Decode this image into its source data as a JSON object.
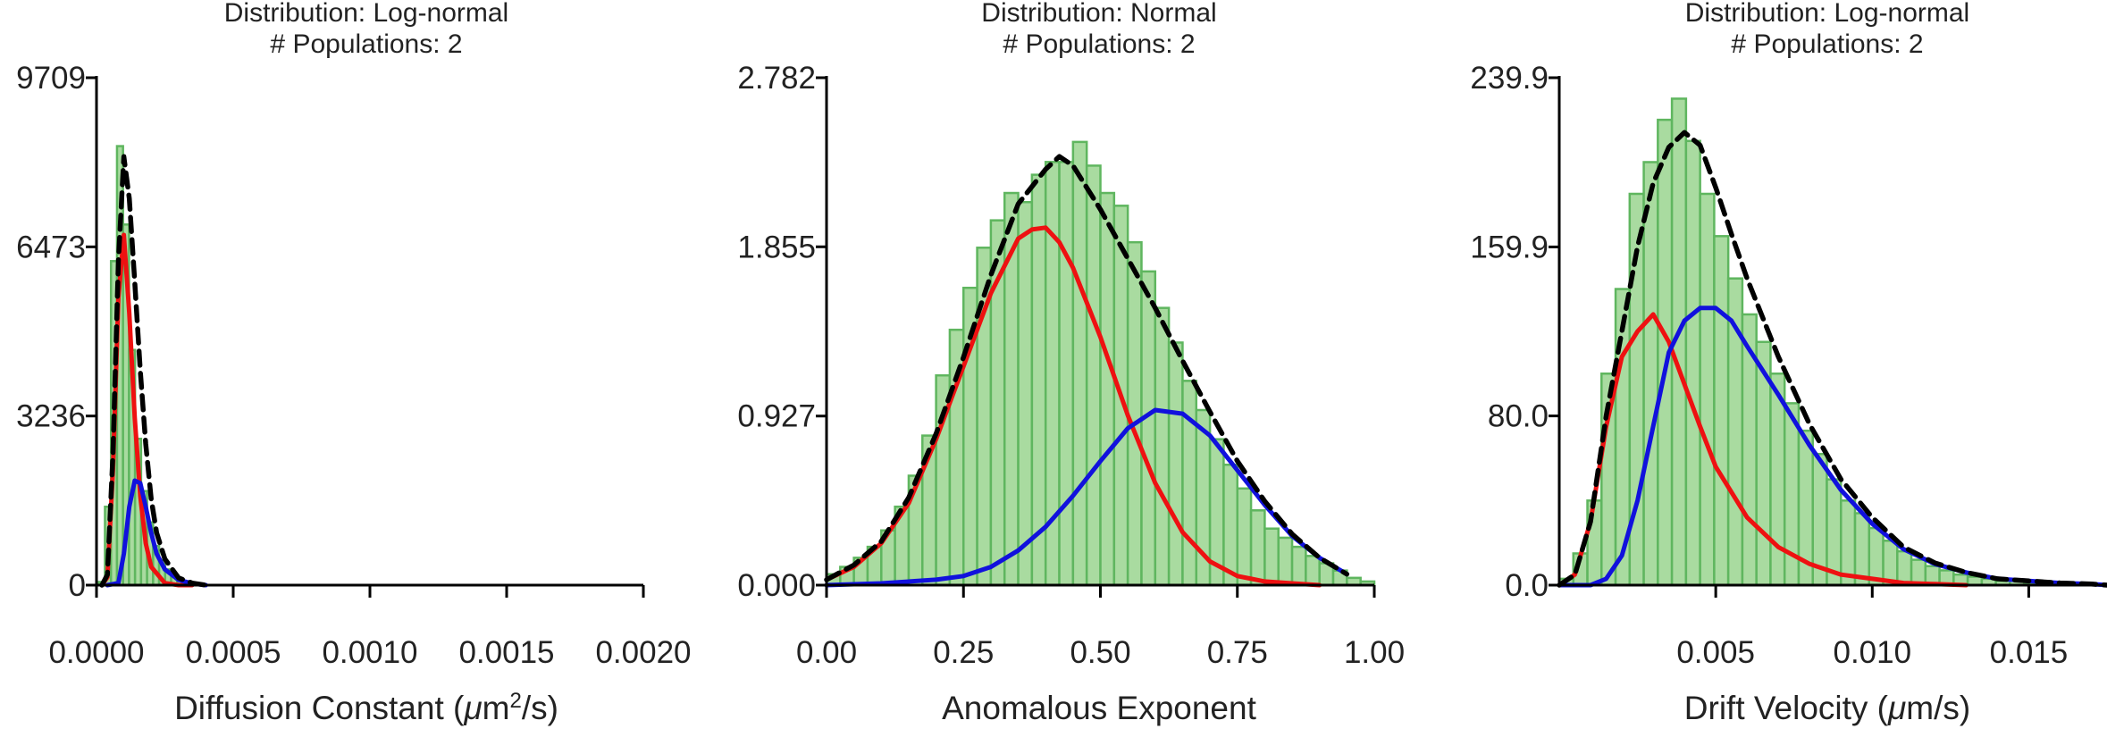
{
  "colors": {
    "bar_fill": "#a9dba0",
    "bar_edge": "#5fb65f",
    "population_1": "#ee1111",
    "population_2": "#1111dd",
    "total_fit": "#000000",
    "axis": "#000000"
  },
  "chart_data": [
    {
      "type": "bar",
      "title_lines": [
        "Distribution: Log-normal",
        "# Populations: 2"
      ],
      "xlabel_prefix": "Diffusion Constant (",
      "xlabel_greek": "μ",
      "xlabel_unit": "m",
      "xlabel_sup": "2",
      "xlabel_suffix": "/s)",
      "ylabel": "",
      "xlim": [
        0.0,
        0.002
      ],
      "ylim": [
        0,
        9709
      ],
      "xticks": [
        0.0,
        0.0005,
        0.001,
        0.0015,
        0.002
      ],
      "xtick_labels": [
        "0.0000",
        "0.0005",
        "0.0010",
        "0.0015",
        "0.0020"
      ],
      "yticks": [
        0,
        3236,
        6473,
        9709
      ],
      "ytick_labels": [
        "0",
        "3236",
        "6473",
        "9709"
      ],
      "bin_width": 2.2e-05,
      "bins": {
        "x": [
          2e-05,
          4.2e-05,
          6.4e-05,
          8.6e-05,
          0.000108,
          0.00013,
          0.000152,
          0.000174,
          0.000196,
          0.000218,
          0.00024,
          0.000262,
          0.000284,
          0.000306,
          0.000328,
          0.00035
        ],
        "values": [
          60,
          1500,
          6200,
          8400,
          6900,
          4500,
          2800,
          1800,
          1200,
          750,
          480,
          300,
          180,
          100,
          50,
          20
        ]
      },
      "series": [
        {
          "name": "",
          "role": "population_1",
          "x": [
            2e-05,
            4e-05,
            6e-05,
            8e-05,
            0.0001,
            0.00012,
            0.00014,
            0.00016,
            0.00018,
            0.0002,
            0.00025,
            0.0003,
            0.00035
          ],
          "values": [
            0,
            150,
            2200,
            5500,
            6700,
            5200,
            3200,
            1700,
            800,
            350,
            40,
            0,
            0
          ]
        },
        {
          "name": "",
          "role": "population_2",
          "x": [
            4e-05,
            8e-05,
            0.0001,
            0.00012,
            0.00014,
            0.00016,
            0.00018,
            0.0002,
            0.00022,
            0.00025,
            0.0003,
            0.00035,
            0.0004
          ],
          "values": [
            0,
            40,
            600,
            1500,
            2000,
            1950,
            1500,
            1000,
            600,
            300,
            100,
            30,
            0
          ]
        },
        {
          "name": "",
          "role": "total",
          "x": [
            2e-05,
            4e-05,
            6e-05,
            8e-05,
            0.0001,
            0.00012,
            0.00014,
            0.00016,
            0.00018,
            0.0002,
            0.00022,
            0.00025,
            0.0003,
            0.00035,
            0.0004
          ],
          "values": [
            0,
            200,
            2500,
            6200,
            8200,
            7400,
            5800,
            4100,
            2700,
            1650,
            1000,
            500,
            140,
            40,
            0
          ]
        }
      ]
    },
    {
      "type": "bar",
      "title_lines": [
        "Distribution: Normal",
        "# Populations: 2"
      ],
      "xlabel_prefix": "Anomalous Exponent",
      "xlabel_greek": "",
      "xlabel_unit": "",
      "xlabel_sup": "",
      "xlabel_suffix": "",
      "ylabel": "",
      "xlim": [
        0.0,
        1.0
      ],
      "ylim": [
        0,
        2.782
      ],
      "xticks": [
        0.0,
        0.25,
        0.5,
        0.75,
        1.0
      ],
      "xtick_labels": [
        "0.00",
        "0.25",
        "0.50",
        "0.75",
        "1.00"
      ],
      "yticks": [
        0,
        0.927,
        1.855,
        2.782
      ],
      "ytick_labels": [
        "0.000",
        "0.927",
        "1.855",
        "2.782"
      ],
      "bin_width": 0.025,
      "bins": {
        "x": [
          0.0125,
          0.0375,
          0.0625,
          0.0875,
          0.1125,
          0.1375,
          0.1625,
          0.1875,
          0.2125,
          0.2375,
          0.2625,
          0.2875,
          0.3125,
          0.3375,
          0.3625,
          0.3875,
          0.4125,
          0.4375,
          0.4625,
          0.4875,
          0.5125,
          0.5375,
          0.5625,
          0.5875,
          0.6125,
          0.6375,
          0.6625,
          0.6875,
          0.7125,
          0.7375,
          0.7625,
          0.7875,
          0.8125,
          0.8375,
          0.8625,
          0.8875,
          0.9125,
          0.9375,
          0.9625,
          0.9875
        ],
        "values": [
          0.06,
          0.1,
          0.15,
          0.21,
          0.3,
          0.43,
          0.6,
          0.82,
          1.15,
          1.4,
          1.63,
          1.85,
          2.0,
          2.15,
          2.1,
          2.25,
          2.32,
          2.32,
          2.43,
          2.3,
          2.15,
          2.08,
          1.88,
          1.72,
          1.52,
          1.33,
          1.12,
          0.96,
          0.8,
          0.66,
          0.53,
          0.41,
          0.31,
          0.26,
          0.21,
          0.16,
          0.12,
          0.08,
          0.04,
          0.02
        ]
      },
      "series": [
        {
          "name": "",
          "role": "population_1",
          "x": [
            0.0,
            0.05,
            0.1,
            0.15,
            0.2,
            0.25,
            0.3,
            0.35,
            0.375,
            0.4,
            0.425,
            0.45,
            0.5,
            0.55,
            0.6,
            0.65,
            0.7,
            0.75,
            0.8,
            0.85,
            0.9
          ],
          "values": [
            0.03,
            0.1,
            0.23,
            0.45,
            0.8,
            1.2,
            1.6,
            1.9,
            1.95,
            1.96,
            1.88,
            1.74,
            1.36,
            0.93,
            0.56,
            0.29,
            0.13,
            0.05,
            0.02,
            0.01,
            0.0
          ]
        },
        {
          "name": "",
          "role": "population_2",
          "x": [
            0.0,
            0.1,
            0.2,
            0.25,
            0.3,
            0.35,
            0.4,
            0.45,
            0.5,
            0.55,
            0.6,
            0.65,
            0.7,
            0.75,
            0.8,
            0.85,
            0.9,
            0.95
          ],
          "values": [
            0.0,
            0.01,
            0.03,
            0.05,
            0.1,
            0.19,
            0.32,
            0.49,
            0.68,
            0.86,
            0.96,
            0.94,
            0.82,
            0.63,
            0.44,
            0.27,
            0.15,
            0.06
          ]
        },
        {
          "name": "",
          "role": "total",
          "x": [
            0.0,
            0.05,
            0.1,
            0.15,
            0.2,
            0.25,
            0.3,
            0.35,
            0.4,
            0.425,
            0.45,
            0.5,
            0.55,
            0.6,
            0.65,
            0.7,
            0.75,
            0.8,
            0.85,
            0.9,
            0.95
          ],
          "values": [
            0.03,
            0.11,
            0.24,
            0.48,
            0.83,
            1.25,
            1.7,
            2.09,
            2.28,
            2.35,
            2.3,
            2.06,
            1.79,
            1.52,
            1.23,
            0.95,
            0.68,
            0.46,
            0.28,
            0.15,
            0.06
          ]
        }
      ]
    },
    {
      "type": "bar",
      "title_lines": [
        "Distribution: Log-normal",
        "# Populations: 2"
      ],
      "xlabel_prefix": "Drift Velocity (",
      "xlabel_greek": "μ",
      "xlabel_unit": "m/s)",
      "xlabel_sup": "",
      "xlabel_suffix": "",
      "ylabel": "",
      "xlim": [
        0.0,
        0.0175
      ],
      "ylim": [
        0,
        239.9
      ],
      "xticks": [
        0.005,
        0.01,
        0.015
      ],
      "xtick_labels": [
        "0.005",
        "0.010",
        "0.015"
      ],
      "yticks": [
        0,
        80.0,
        159.9,
        239.9
      ],
      "ytick_labels": [
        "0.0",
        "80.0",
        "159.9",
        "239.9"
      ],
      "bin_width": 0.00045,
      "bins": {
        "x": [
          0.000225,
          0.000675,
          0.001125,
          0.001575,
          0.002025,
          0.002475,
          0.002925,
          0.003375,
          0.003825,
          0.004275,
          0.004725,
          0.005175,
          0.005625,
          0.006075,
          0.006525,
          0.006975,
          0.007425,
          0.007875,
          0.008325,
          0.008775,
          0.009225,
          0.009675,
          0.010125,
          0.010575,
          0.011025,
          0.011475,
          0.011925,
          0.012375,
          0.012825,
          0.013275,
          0.013725,
          0.014175,
          0.014625,
          0.015075,
          0.015525,
          0.015975,
          0.016425,
          0.016875,
          0.017325
        ],
        "values": [
          3,
          15,
          40,
          100,
          140,
          185,
          200,
          220,
          230,
          210,
          185,
          165,
          145,
          128,
          115,
          100,
          86,
          73,
          62,
          50,
          40,
          34,
          27,
          21,
          16,
          12,
          9,
          7,
          5,
          4,
          3,
          2,
          2,
          1,
          1,
          1,
          1,
          0,
          0
        ]
      },
      "series": [
        {
          "name": "",
          "role": "population_1",
          "x": [
            0.0,
            0.0005,
            0.001,
            0.0015,
            0.002,
            0.0025,
            0.003,
            0.0035,
            0.004,
            0.0045,
            0.005,
            0.006,
            0.007,
            0.008,
            0.009,
            0.01,
            0.011,
            0.012,
            0.013
          ],
          "values": [
            0,
            5,
            30,
            75,
            108,
            120,
            128,
            115,
            95,
            75,
            56,
            32,
            18,
            10,
            5,
            3,
            1,
            0.5,
            0
          ]
        },
        {
          "name": "",
          "role": "population_2",
          "x": [
            0.0,
            0.001,
            0.0015,
            0.002,
            0.0025,
            0.003,
            0.0035,
            0.004,
            0.0045,
            0.005,
            0.0055,
            0.006,
            0.007,
            0.008,
            0.009,
            0.01,
            0.011,
            0.012,
            0.013,
            0.014,
            0.015,
            0.016,
            0.017,
            0.0175
          ],
          "values": [
            0,
            0,
            3,
            14,
            40,
            75,
            110,
            125,
            131,
            131,
            125,
            113,
            90,
            66,
            45,
            29,
            17,
            10,
            6,
            3,
            2,
            1,
            0.5,
            0
          ]
        },
        {
          "name": "",
          "role": "total",
          "x": [
            0.0,
            0.0005,
            0.001,
            0.0015,
            0.002,
            0.0025,
            0.003,
            0.0035,
            0.004,
            0.0045,
            0.005,
            0.0055,
            0.006,
            0.007,
            0.008,
            0.009,
            0.01,
            0.011,
            0.012,
            0.013,
            0.014,
            0.015,
            0.016,
            0.017,
            0.0175
          ],
          "values": [
            0,
            5,
            30,
            80,
            120,
            160,
            190,
            207,
            214,
            208,
            188,
            166,
            145,
            108,
            76,
            50,
            32,
            18,
            10.5,
            6,
            3,
            2,
            1,
            0.5,
            0
          ]
        }
      ]
    }
  ]
}
